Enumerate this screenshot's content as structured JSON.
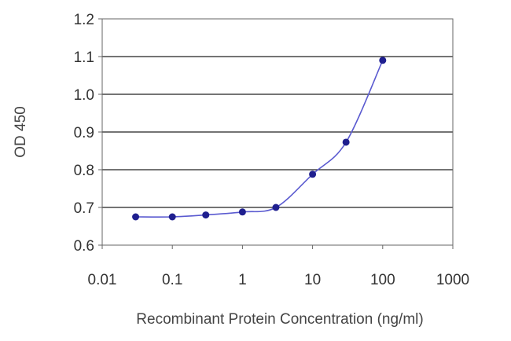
{
  "chart_data": {
    "type": "line",
    "title": "",
    "xlabel": "Recombinant Protein Concentration (ng/ml)",
    "ylabel": "OD 450",
    "x_scale": "log",
    "xlim": [
      0.01,
      1000
    ],
    "ylim": [
      0.6,
      1.2
    ],
    "x_ticks": [
      0.01,
      0.1,
      1,
      10,
      100,
      1000
    ],
    "x_tick_labels": [
      "0.01",
      "0.1",
      "1",
      "10",
      "100",
      "1000"
    ],
    "y_ticks": [
      0.6,
      0.7,
      0.8,
      0.9,
      1.0,
      1.1,
      1.2
    ],
    "y_tick_labels": [
      "0.6",
      "0.7",
      "0.8",
      "0.9",
      "1.0",
      "1.1",
      "1.2"
    ],
    "grid": "horizontal",
    "legend": "none",
    "series": [
      {
        "x": [
          0.03,
          0.1,
          0.3,
          1,
          3,
          10,
          30,
          100
        ],
        "y": [
          0.675,
          0.675,
          0.68,
          0.688,
          0.7,
          0.788,
          0.873,
          1.09
        ],
        "color": "#1f1f8f",
        "line_color": "#5a5ad0"
      }
    ]
  }
}
